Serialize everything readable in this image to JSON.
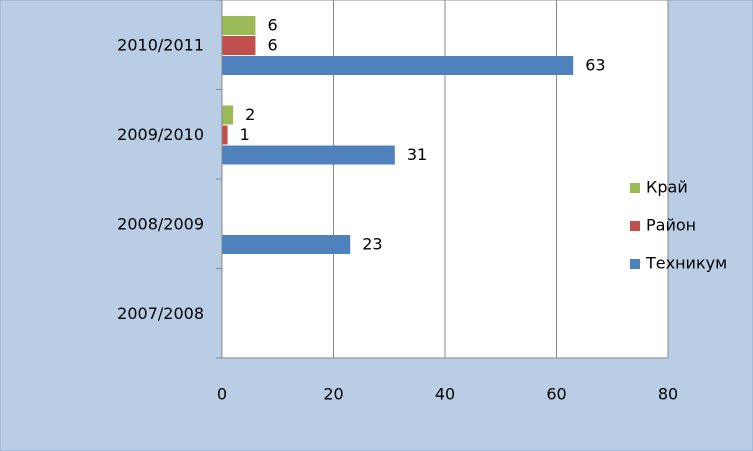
{
  "chart_data": {
    "type": "bar",
    "orientation": "horizontal",
    "categories": [
      "2010/2011",
      "2009/2010",
      "2008/2009",
      "2007/2008"
    ],
    "series": [
      {
        "name": "Техникум",
        "color": "#4f81bd",
        "values": [
          63,
          31,
          23,
          null
        ]
      },
      {
        "name": "Район",
        "color": "#c0504d",
        "values": [
          6,
          1,
          null,
          null
        ]
      },
      {
        "name": "Край",
        "color": "#9bbb59",
        "values": [
          6,
          2,
          null,
          null
        ]
      }
    ],
    "xlim": [
      0,
      80
    ],
    "xticks": [
      0,
      20,
      40,
      60,
      80
    ],
    "grid": true,
    "legend": "right"
  }
}
